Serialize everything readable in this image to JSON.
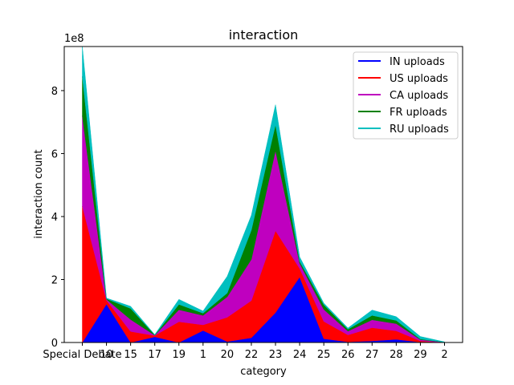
{
  "chart_data": {
    "type": "area",
    "title": "interaction",
    "xlabel": "category",
    "ylabel": "interaction count",
    "y_exponent_label": "1e8",
    "ylim": [
      0,
      940000000
    ],
    "yticks": [
      0,
      200000000,
      400000000,
      600000000,
      800000000
    ],
    "ytick_labels": [
      "0",
      "2",
      "4",
      "6",
      "8"
    ],
    "categories": [
      "Special Debate",
      "10",
      "15",
      "17",
      "19",
      "1",
      "20",
      "22",
      "23",
      "24",
      "25",
      "26",
      "27",
      "28",
      "29",
      "2"
    ],
    "legend_position": "top-right",
    "grid": false,
    "series": [
      {
        "name": "IN uploads",
        "color": "#0000ff",
        "values": [
          0,
          122000000,
          0,
          18000000,
          0,
          38000000,
          3000000,
          15000000,
          95000000,
          208000000,
          12000000,
          2000000,
          5000000,
          10000000,
          1000000,
          0
        ]
      },
      {
        "name": "US uploads",
        "color": "#ff0000",
        "values": [
          433000000,
          12000000,
          35000000,
          4000000,
          66000000,
          18000000,
          77000000,
          118000000,
          260000000,
          27000000,
          55000000,
          22000000,
          42000000,
          27000000,
          4000000,
          0
        ]
      },
      {
        "name": "CA uploads",
        "color": "#bf00bf",
        "values": [
          287000000,
          3000000,
          38000000,
          1000000,
          38000000,
          30000000,
          65000000,
          131000000,
          255000000,
          17000000,
          38000000,
          12000000,
          25000000,
          23000000,
          4000000,
          1000000
        ]
      },
      {
        "name": "FR uploads",
        "color": "#008000",
        "values": [
          125000000,
          2000000,
          35000000,
          1000000,
          17000000,
          7000000,
          12000000,
          93000000,
          82000000,
          6000000,
          15000000,
          6000000,
          14000000,
          10000000,
          2000000,
          0
        ]
      },
      {
        "name": "RU uploads",
        "color": "#00bfbf",
        "values": [
          95000000,
          2000000,
          7000000,
          1000000,
          16000000,
          7000000,
          53000000,
          47000000,
          63000000,
          14000000,
          5000000,
          4000000,
          17000000,
          12000000,
          8000000,
          1000000
        ]
      }
    ]
  }
}
